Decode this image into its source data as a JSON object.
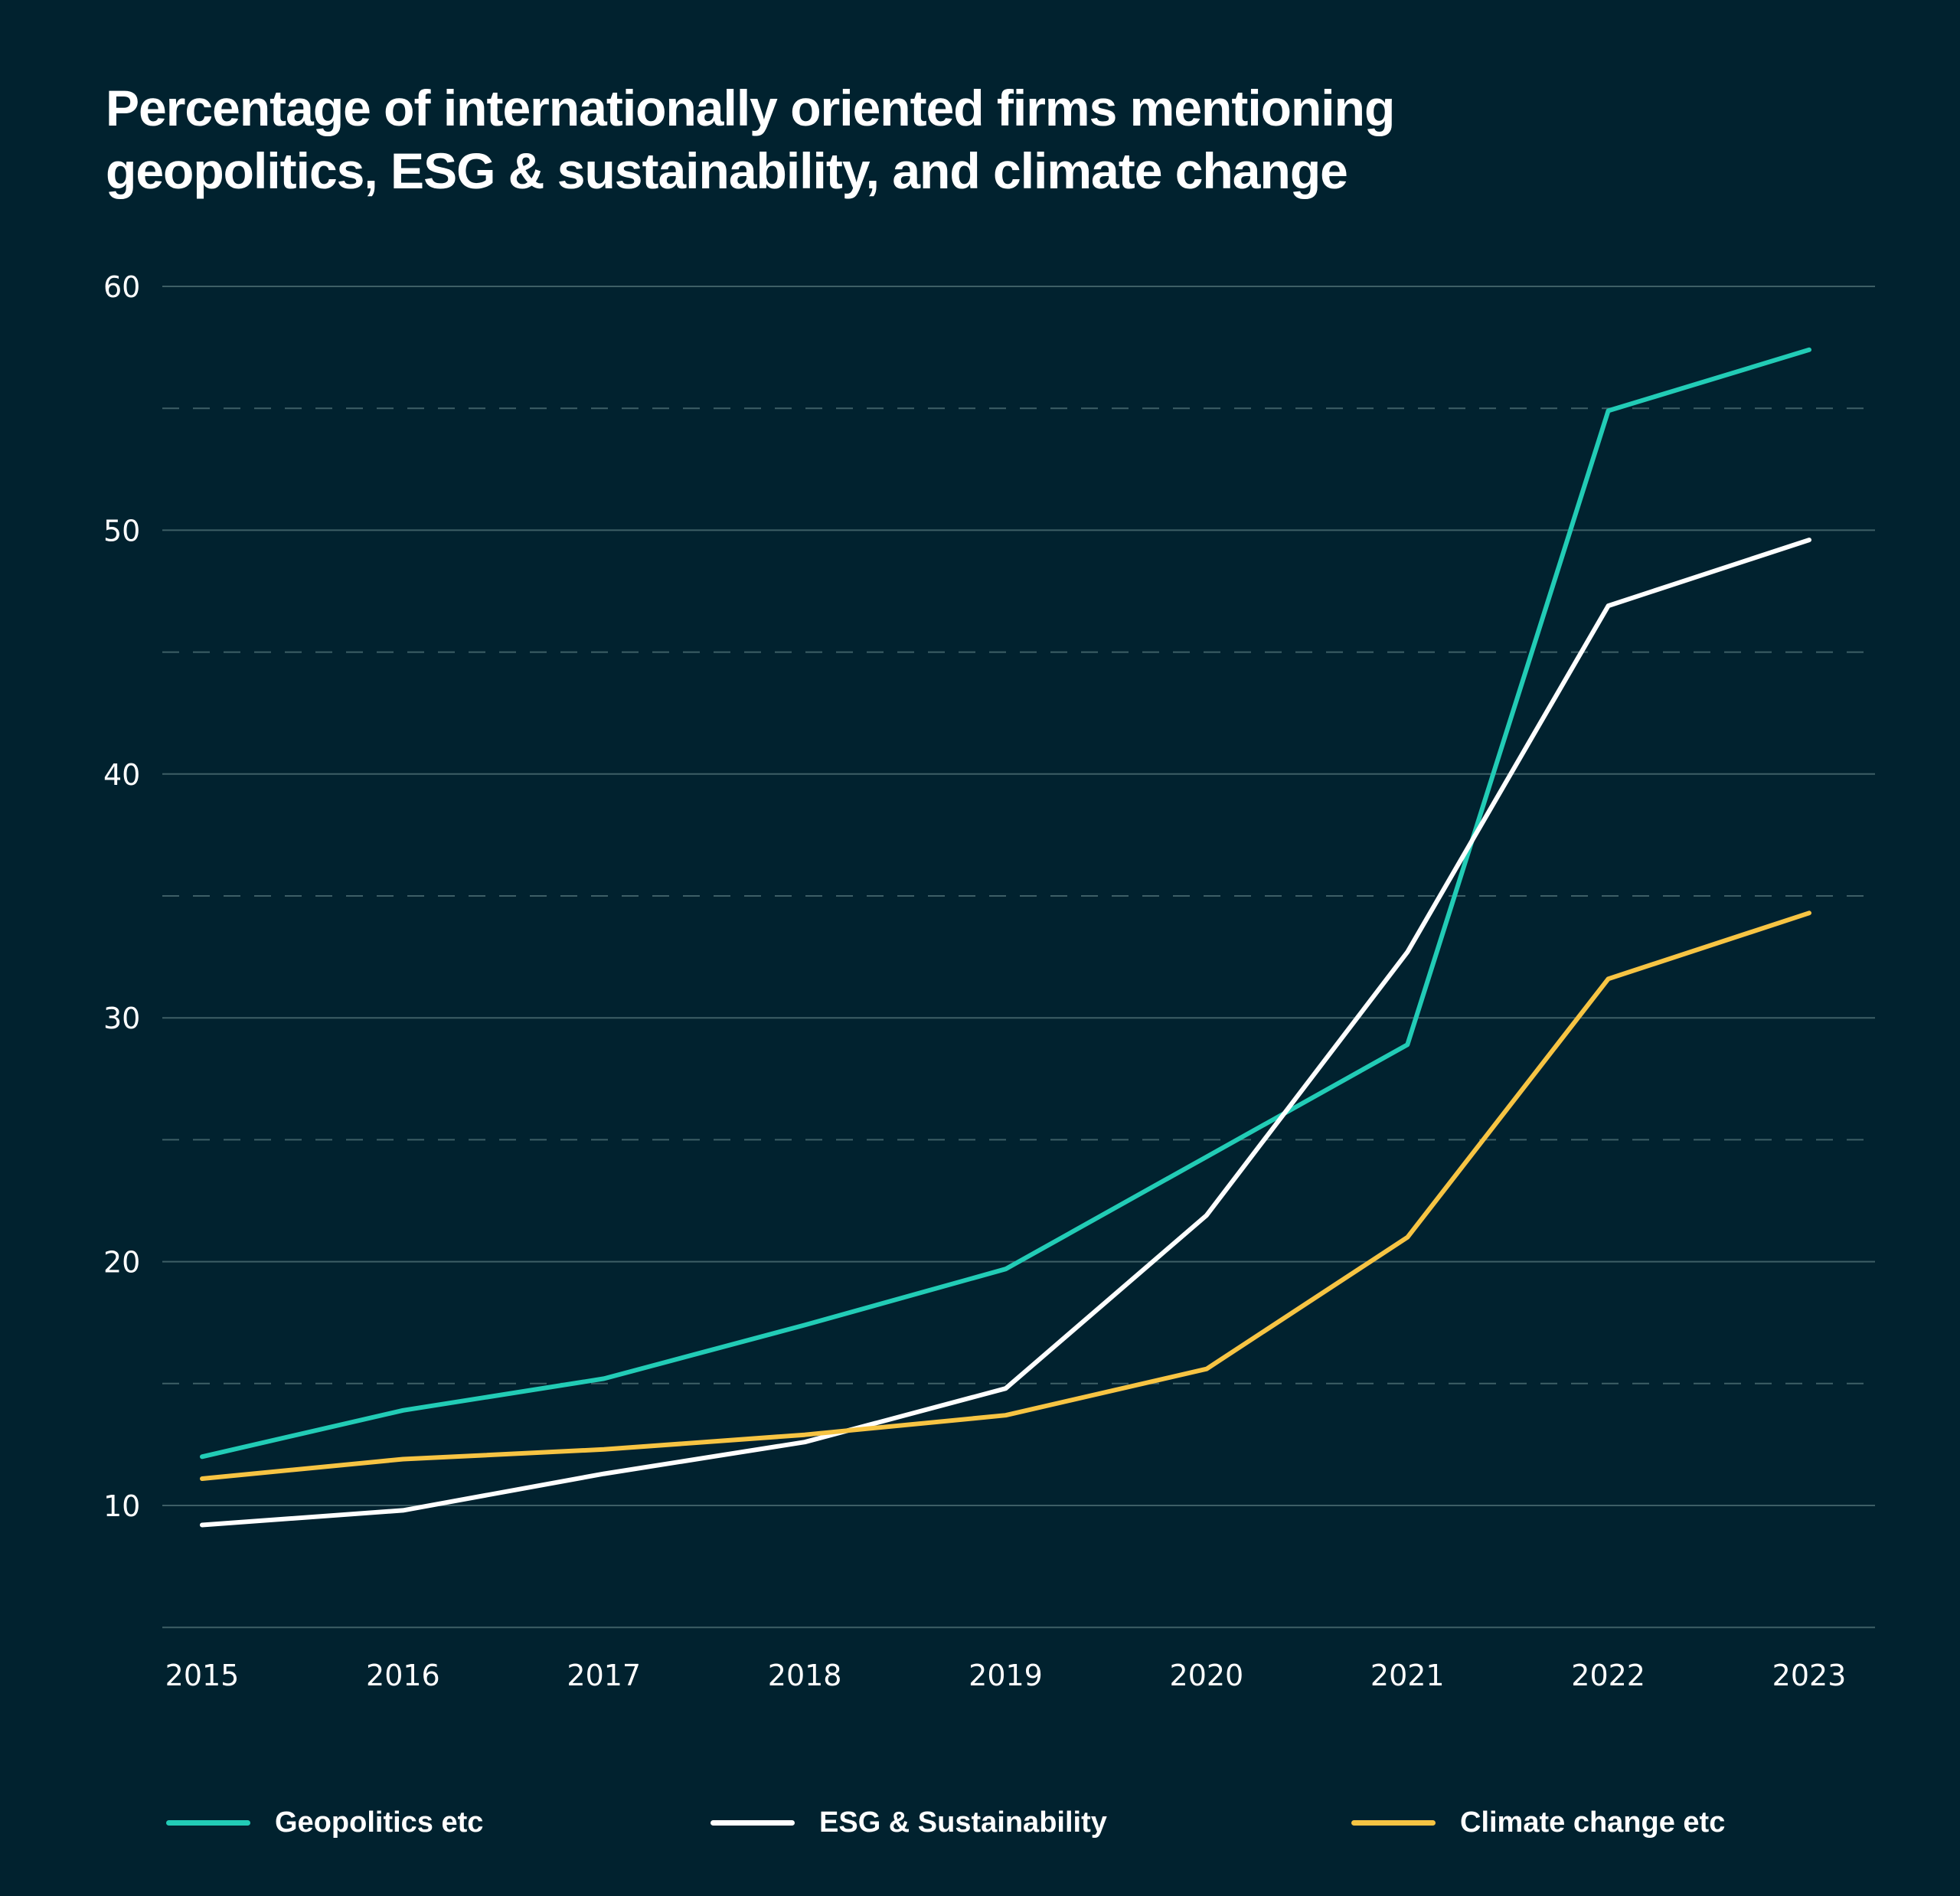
{
  "title_lines": [
    "Percentage of internationally oriented firms mentioning",
    "geopolitics, ESG & sustainability, and climate change"
  ],
  "chart_data": {
    "type": "line",
    "title": "Percentage of internationally oriented firms mentioning geopolitics, ESG & sustainability, and climate change",
    "xlabel": "",
    "ylabel": "",
    "x": [
      "2015",
      "2016",
      "2017",
      "2018",
      "2019",
      "2020",
      "2021",
      "2022",
      "2023"
    ],
    "ylim": [
      5,
      60
    ],
    "yticks": [
      10,
      20,
      30,
      40,
      50,
      60
    ],
    "ytick_labels": [
      "10",
      "20",
      "30",
      "40",
      "50",
      "60"
    ],
    "minor_gridlines": [
      15,
      25,
      35,
      45,
      55
    ],
    "grid": true,
    "legend_position": "bottom",
    "series": [
      {
        "name": "Geopolitics etc",
        "color": "#22ccb6",
        "values": [
          12.0,
          13.9,
          15.2,
          17.4,
          19.7,
          24.3,
          28.9,
          54.9,
          57.4
        ]
      },
      {
        "name": "ESG & Sustainability",
        "color": "#ffffff",
        "values": [
          9.2,
          9.8,
          11.3,
          12.6,
          14.8,
          21.9,
          32.7,
          46.9,
          49.6
        ]
      },
      {
        "name": "Climate change etc",
        "color": "#f7c443",
        "values": [
          11.1,
          11.9,
          12.3,
          12.9,
          13.7,
          15.6,
          21.0,
          31.6,
          34.3
        ]
      }
    ]
  },
  "colors": {
    "background": "#01222f",
    "gridline": "#3e5f66",
    "text": "#ffffff"
  }
}
